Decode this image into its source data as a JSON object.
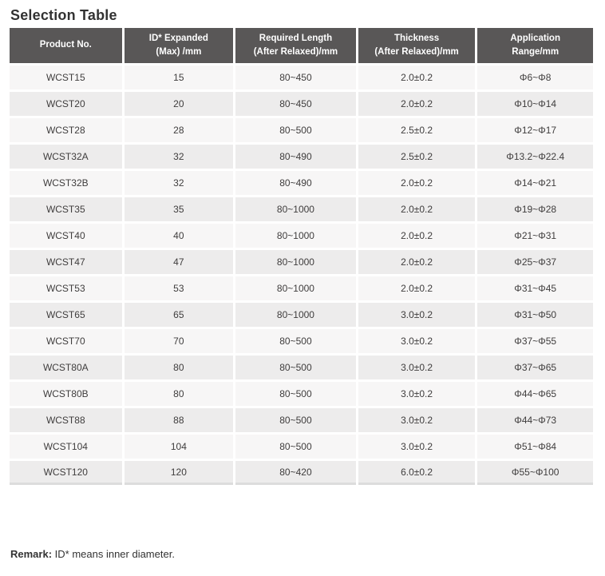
{
  "page": {
    "title": "Selection Table"
  },
  "table": {
    "columns": [
      "Product No.",
      "ID* Expanded\n(Max) /mm",
      "Required Length\n(After Relaxed)/mm",
      "Thickness\n(After Relaxed)/mm",
      "Application\nRange/mm"
    ],
    "rows": [
      [
        "WCST15",
        "15",
        "80~450",
        "2.0±0.2",
        "Φ6~Φ8"
      ],
      [
        "WCST20",
        "20",
        "80~450",
        "2.0±0.2",
        "Φ10~Φ14"
      ],
      [
        "WCST28",
        "28",
        "80~500",
        "2.5±0.2",
        "Φ12~Φ17"
      ],
      [
        "WCST32A",
        "32",
        "80~490",
        "2.5±0.2",
        "Φ13.2~Φ22.4"
      ],
      [
        "WCST32B",
        "32",
        "80~490",
        "2.0±0.2",
        "Φ14~Φ21"
      ],
      [
        "WCST35",
        "35",
        "80~1000",
        "2.0±0.2",
        "Φ19~Φ28"
      ],
      [
        "WCST40",
        "40",
        "80~1000",
        "2.0±0.2",
        "Φ21~Φ31"
      ],
      [
        "WCST47",
        "47",
        "80~1000",
        "2.0±0.2",
        "Φ25~Φ37"
      ],
      [
        "WCST53",
        "53",
        "80~1000",
        "2.0±0.2",
        "Φ31~Φ45"
      ],
      [
        "WCST65",
        "65",
        "80~1000",
        "3.0±0.2",
        "Φ31~Φ50"
      ],
      [
        "WCST70",
        "70",
        "80~500",
        "3.0±0.2",
        "Φ37~Φ55"
      ],
      [
        "WCST80A",
        "80",
        "80~500",
        "3.0±0.2",
        "Φ37~Φ65"
      ],
      [
        "WCST80B",
        "80",
        "80~500",
        "3.0±0.2",
        "Φ44~Φ65"
      ],
      [
        "WCST88",
        "88",
        "80~500",
        "3.0±0.2",
        "Φ44~Φ73"
      ],
      [
        "WCST104",
        "104",
        "80~500",
        "3.0±0.2",
        "Φ51~Φ84"
      ],
      [
        "WCST120",
        "120",
        "80~420",
        "6.0±0.2",
        "Φ55~Φ100"
      ]
    ]
  },
  "remark": {
    "label": "Remark:",
    "text": " ID* means inner diameter."
  },
  "colors": {
    "header_bg": "#595757",
    "header_text": "#ffffff",
    "row_odd_bg": "#f7f6f6",
    "row_even_bg": "#edecec",
    "table_bottom_border": "#dcdcdc",
    "cell_text": "#3f3d3d",
    "title_text": "#323232"
  }
}
